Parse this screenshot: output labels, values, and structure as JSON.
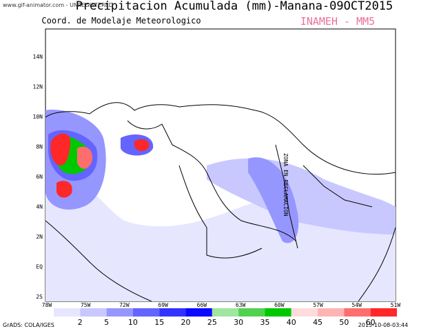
{
  "header": {
    "title": "Precipitacion Acumulada (mm)-Manana-09OCT2015",
    "subtitle": "Coord. de Modelaje Meteorologico",
    "agency": "INAMEH  -  MM5",
    "watermark": "www.gif-animator.com - UNREGISTERED"
  },
  "map": {
    "lat_labels": [
      "14N",
      "12N",
      "10N",
      "8N",
      "6N",
      "4N",
      "2N",
      "EQ",
      "2S"
    ],
    "lon_labels": [
      "78W",
      "75W",
      "72W",
      "69W",
      "66W",
      "63W",
      "60W",
      "57W",
      "54W",
      "51W"
    ],
    "zone_label": "ZONA EN RECLAMACION"
  },
  "colorbar": {
    "colors": [
      "#e6e6ff",
      "#c8c8ff",
      "#9696ff",
      "#6464ff",
      "#3232ff",
      "#0a0aff",
      "#a0e6a0",
      "#50d250",
      "#00c800",
      "#ffdcdc",
      "#ffb4b4",
      "#ff6e6e",
      "#ff2828"
    ],
    "labels": [
      "2",
      "5",
      "10",
      "15",
      "20",
      "25",
      "30",
      "35",
      "40",
      "45",
      "50",
      "60"
    ]
  },
  "footer": {
    "software": "GrADS: COLA/IGES",
    "timestamp": "2015-10-08-03:44"
  }
}
